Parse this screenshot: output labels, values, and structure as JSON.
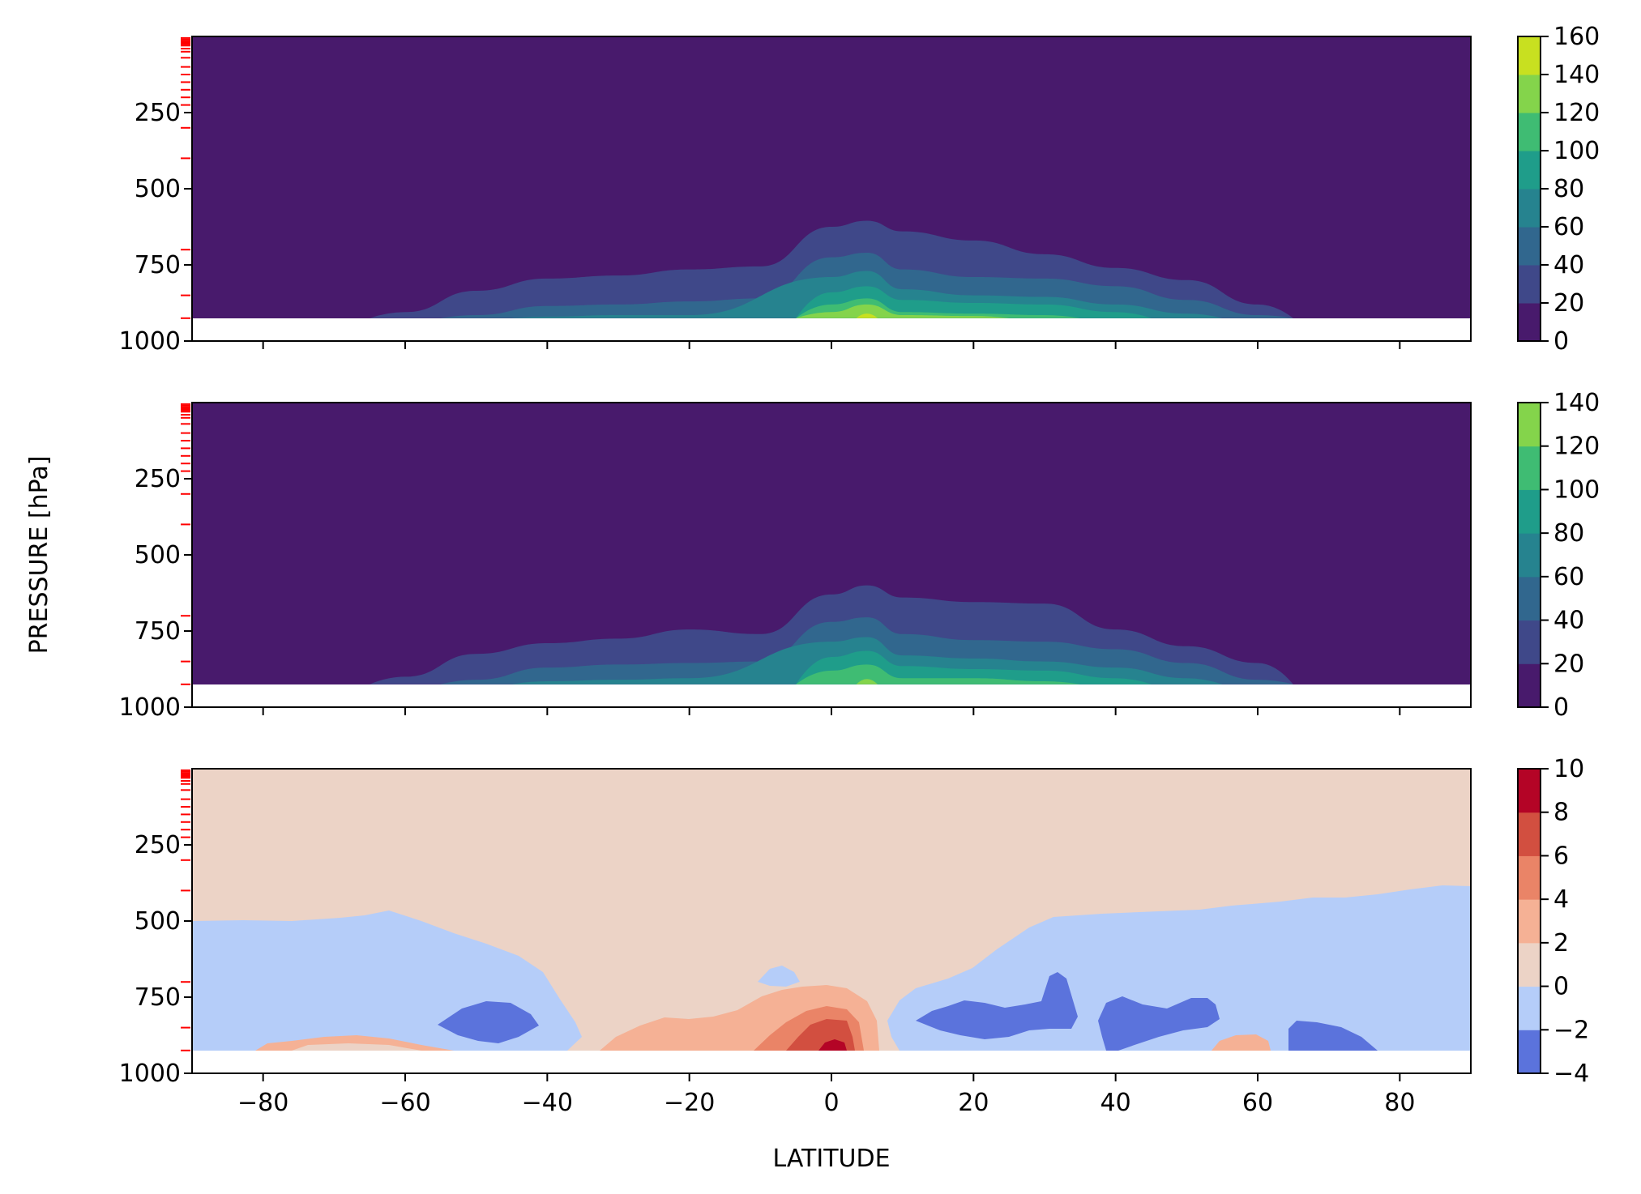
{
  "figure": {
    "ylabel": "PRESSURE [hPa]",
    "xlabel": "LATITUDE"
  },
  "chart_data": [
    {
      "type": "contourf",
      "panel": "top",
      "x": [
        -90,
        -80,
        -70,
        -60,
        -50,
        -40,
        -30,
        -20,
        -10,
        0,
        5,
        10,
        20,
        30,
        40,
        50,
        60,
        70,
        80,
        90
      ],
      "ylim": [
        1000,
        0
      ],
      "xlim": [
        -90,
        90
      ],
      "y_ticks": [
        250,
        500,
        750,
        1000
      ],
      "x_ticks": [
        -80,
        -60,
        -40,
        -20,
        0,
        20,
        40,
        60,
        80
      ],
      "levels": [
        0,
        20,
        40,
        60,
        80,
        100,
        120,
        140,
        160
      ],
      "colors": [
        "#481a6c",
        "#3f4889",
        "#31678e",
        "#26838f",
        "#1f9d8a",
        "#3fbc73",
        "#84d44b",
        "#c8e020",
        "#fde725"
      ],
      "colorbar_ticks": [
        0,
        20,
        40,
        60,
        80,
        100,
        120,
        140,
        160
      ],
      "contour_tops_hpa": [
        [
          null,
          null,
          null,
          905,
          835,
          795,
          785,
          765,
          755,
          625,
          605,
          640,
          670,
          715,
          760,
          800,
          880,
          null,
          null,
          null
        ],
        [
          null,
          null,
          null,
          null,
          915,
          885,
          880,
          870,
          860,
          725,
          710,
          765,
          790,
          795,
          820,
          865,
          915,
          null,
          null,
          null
        ],
        [
          null,
          null,
          null,
          null,
          null,
          920,
          915,
          915,
          null,
          790,
          770,
          830,
          850,
          855,
          880,
          910,
          null,
          null,
          null,
          null
        ],
        [
          null,
          null,
          null,
          null,
          null,
          null,
          null,
          null,
          null,
          840,
          820,
          865,
          875,
          880,
          905,
          null,
          null,
          null,
          null,
          null
        ],
        [
          null,
          null,
          null,
          null,
          null,
          null,
          null,
          null,
          null,
          880,
          860,
          905,
          910,
          915,
          null,
          null,
          null,
          null,
          null,
          null
        ],
        [
          null,
          null,
          null,
          null,
          null,
          null,
          null,
          null,
          null,
          905,
          880,
          915,
          918,
          null,
          null,
          null,
          null,
          null,
          null,
          null
        ],
        [
          null,
          null,
          null,
          null,
          null,
          null,
          null,
          null,
          null,
          null,
          895,
          null,
          null,
          null,
          null,
          null,
          null,
          null,
          null,
          null
        ]
      ],
      "surface_hpa": 925
    },
    {
      "type": "contourf",
      "panel": "middle",
      "x": [
        -90,
        -80,
        -70,
        -60,
        -50,
        -40,
        -30,
        -20,
        -10,
        0,
        5,
        10,
        20,
        30,
        40,
        50,
        60,
        70,
        80,
        90
      ],
      "ylim": [
        1000,
        0
      ],
      "xlim": [
        -90,
        90
      ],
      "y_ticks": [
        250,
        500,
        750,
        1000
      ],
      "x_ticks": [
        -80,
        -60,
        -40,
        -20,
        0,
        20,
        40,
        60,
        80
      ],
      "levels": [
        0,
        20,
        40,
        60,
        80,
        100,
        120,
        140
      ],
      "colors": [
        "#481a6c",
        "#3f4889",
        "#31678e",
        "#26838f",
        "#1f9d8a",
        "#3fbc73",
        "#84d44b",
        "#c8e020"
      ],
      "colorbar_ticks": [
        0,
        20,
        40,
        60,
        80,
        100,
        120,
        140
      ],
      "contour_tops_hpa": [
        [
          null,
          null,
          null,
          900,
          825,
          790,
          775,
          745,
          760,
          630,
          600,
          640,
          655,
          660,
          745,
          800,
          855,
          null,
          null,
          null
        ],
        [
          null,
          null,
          null,
          null,
          910,
          870,
          860,
          855,
          850,
          720,
          705,
          760,
          780,
          785,
          810,
          855,
          910,
          null,
          null,
          null
        ],
        [
          null,
          null,
          null,
          null,
          null,
          915,
          910,
          905,
          null,
          785,
          770,
          830,
          840,
          850,
          870,
          905,
          null,
          null,
          null,
          null
        ],
        [
          null,
          null,
          null,
          null,
          null,
          null,
          null,
          null,
          null,
          835,
          815,
          865,
          875,
          880,
          905,
          null,
          null,
          null,
          null,
          null
        ],
        [
          null,
          null,
          null,
          null,
          null,
          null,
          null,
          null,
          null,
          880,
          860,
          905,
          905,
          915,
          null,
          null,
          null,
          null,
          null,
          null
        ],
        [
          null,
          null,
          null,
          null,
          null,
          null,
          null,
          null,
          null,
          null,
          890,
          null,
          null,
          null,
          null,
          null,
          null,
          null,
          null,
          null
        ]
      ],
      "surface_hpa": 925
    },
    {
      "type": "contourf",
      "panel": "bottom",
      "xlim": [
        -90,
        90
      ],
      "ylim": [
        1000,
        0
      ],
      "y_ticks": [
        250,
        500,
        750,
        1000
      ],
      "x_ticks": [
        -80,
        -60,
        -40,
        -20,
        0,
        20,
        40,
        60,
        80
      ],
      "x_tick_labels": [
        "−80",
        "−60",
        "−40",
        "−20",
        "0",
        "20",
        "40",
        "60",
        "80"
      ],
      "levels": [
        -4,
        -2,
        0,
        2,
        4,
        6,
        8,
        10
      ],
      "colors": [
        "#5b73dc",
        "#b5cdf9",
        "#ecd3c6",
        "#f5b195",
        "#ea8467",
        "#d24f40",
        "#b40426"
      ],
      "colorbar_ticks": [
        -4,
        -2,
        0,
        2,
        4,
        6,
        8,
        10
      ],
      "colorbar_tick_labels": [
        "−4",
        "−2",
        "0",
        "2",
        "4",
        "6",
        "8",
        "10"
      ],
      "background_level": "0 to 2",
      "surface_hpa": 925
    }
  ]
}
